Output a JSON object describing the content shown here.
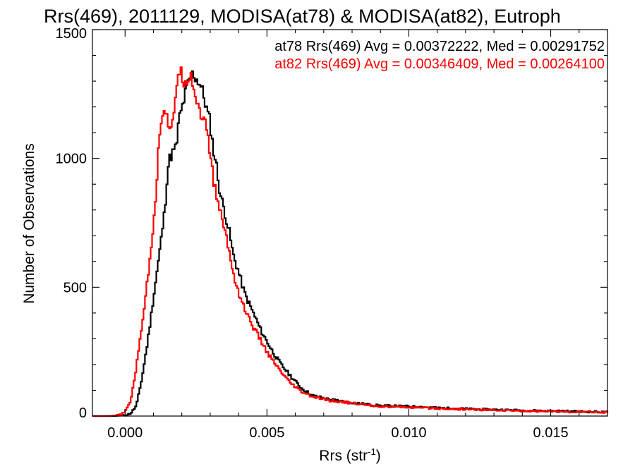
{
  "chart_data": {
    "type": "line",
    "title": "Rrs(469), 2011129, MODISA(at78) & MODISA(at82), Eutroph",
    "xlabel": "Rrs (str",
    "xlabel_sup": "-1",
    "xlabel_close": ")",
    "ylabel": "Number of Observations",
    "xlim": [
      -0.00115,
      0.017
    ],
    "ylim": [
      0,
      1500
    ],
    "xticks": [
      0.0,
      0.005,
      0.01,
      0.015
    ],
    "xtick_labels": [
      "0.000",
      "0.005",
      "0.010",
      "0.015"
    ],
    "yticks": [
      0,
      500,
      1000,
      1500
    ],
    "ytick_labels": [
      "0",
      "500",
      "1000",
      "1500"
    ],
    "grid": false,
    "legend_position": "top-right",
    "series": [
      {
        "name": "at78 Rrs(469) Avg = 0.00372222, Med = 0.00291752",
        "color": "#000000",
        "points": [
          [
            -0.0011,
            0
          ],
          [
            -0.0004,
            0
          ],
          [
            0.0,
            3
          ],
          [
            0.0002,
            10
          ],
          [
            0.0004,
            40
          ],
          [
            0.0006,
            150
          ],
          [
            0.0008,
            290
          ],
          [
            0.001,
            460
          ],
          [
            0.0012,
            620
          ],
          [
            0.0014,
            800
          ],
          [
            0.0015,
            960
          ],
          [
            0.0016,
            1010
          ],
          [
            0.0018,
            1040
          ],
          [
            0.0019,
            1150
          ],
          [
            0.002,
            1190
          ],
          [
            0.0021,
            1240
          ],
          [
            0.0022,
            1280
          ],
          [
            0.0023,
            1310
          ],
          [
            0.0024,
            1330
          ],
          [
            0.0025,
            1310
          ],
          [
            0.0026,
            1300
          ],
          [
            0.0027,
            1270
          ],
          [
            0.0028,
            1230
          ],
          [
            0.0029,
            1180
          ],
          [
            0.003,
            1140
          ],
          [
            0.0031,
            1040
          ],
          [
            0.0032,
            990
          ],
          [
            0.0033,
            900
          ],
          [
            0.0034,
            840
          ],
          [
            0.0035,
            800
          ],
          [
            0.0036,
            750
          ],
          [
            0.0037,
            700
          ],
          [
            0.0038,
            630
          ],
          [
            0.004,
            560
          ],
          [
            0.0042,
            480
          ],
          [
            0.0044,
            430
          ],
          [
            0.0046,
            380
          ],
          [
            0.0048,
            330
          ],
          [
            0.005,
            290
          ],
          [
            0.0052,
            250
          ],
          [
            0.0055,
            200
          ],
          [
            0.0058,
            160
          ],
          [
            0.0062,
            110
          ],
          [
            0.0066,
            80
          ],
          [
            0.0072,
            65
          ],
          [
            0.008,
            52
          ],
          [
            0.009,
            40
          ],
          [
            0.01,
            38
          ],
          [
            0.011,
            32
          ],
          [
            0.012,
            28
          ],
          [
            0.013,
            25
          ],
          [
            0.014,
            22
          ],
          [
            0.015,
            20
          ],
          [
            0.016,
            18
          ],
          [
            0.017,
            15
          ]
        ]
      },
      {
        "name": "at82 Rrs(469) Avg = 0.00346409, Med = 0.00264100",
        "color": "#ff0000",
        "points": [
          [
            -0.0011,
            0
          ],
          [
            -0.0006,
            0
          ],
          [
            -0.0002,
            3
          ],
          [
            0.0,
            15
          ],
          [
            0.0002,
            60
          ],
          [
            0.0004,
            190
          ],
          [
            0.0006,
            360
          ],
          [
            0.0008,
            530
          ],
          [
            0.0009,
            640
          ],
          [
            0.001,
            750
          ],
          [
            0.0011,
            880
          ],
          [
            0.0012,
            1070
          ],
          [
            0.0013,
            1180
          ],
          [
            0.0014,
            1200
          ],
          [
            0.0015,
            1150
          ],
          [
            0.0016,
            1080
          ],
          [
            0.0017,
            1150
          ],
          [
            0.0018,
            1280
          ],
          [
            0.0019,
            1350
          ],
          [
            0.002,
            1320
          ],
          [
            0.0021,
            1300
          ],
          [
            0.0022,
            1310
          ],
          [
            0.0023,
            1330
          ],
          [
            0.0024,
            1290
          ],
          [
            0.0025,
            1230
          ],
          [
            0.0026,
            1200
          ],
          [
            0.0027,
            1170
          ],
          [
            0.0028,
            1150
          ],
          [
            0.0029,
            1080
          ],
          [
            0.003,
            1030
          ],
          [
            0.0031,
            920
          ],
          [
            0.0032,
            870
          ],
          [
            0.0033,
            820
          ],
          [
            0.0034,
            770
          ],
          [
            0.0035,
            730
          ],
          [
            0.0036,
            680
          ],
          [
            0.0037,
            620
          ],
          [
            0.0038,
            560
          ],
          [
            0.004,
            480
          ],
          [
            0.0042,
            420
          ],
          [
            0.0044,
            370
          ],
          [
            0.0046,
            330
          ],
          [
            0.0048,
            290
          ],
          [
            0.005,
            250
          ],
          [
            0.0052,
            215
          ],
          [
            0.0055,
            170
          ],
          [
            0.0058,
            130
          ],
          [
            0.0062,
            95
          ],
          [
            0.0066,
            75
          ],
          [
            0.0072,
            60
          ],
          [
            0.008,
            50
          ],
          [
            0.009,
            38
          ],
          [
            0.01,
            34
          ],
          [
            0.011,
            30
          ],
          [
            0.012,
            26
          ],
          [
            0.013,
            23
          ],
          [
            0.014,
            20
          ],
          [
            0.015,
            18
          ],
          [
            0.016,
            16
          ],
          [
            0.017,
            14
          ]
        ]
      }
    ]
  }
}
